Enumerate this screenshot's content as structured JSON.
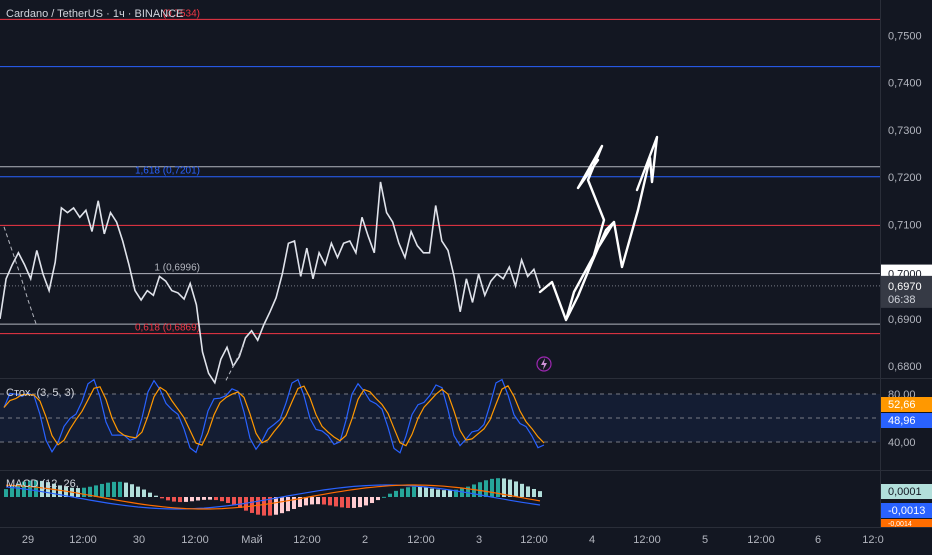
{
  "header": {
    "symbol": "Cardano / TetherUS",
    "interval": "1ч",
    "exchange": "BINANCE"
  },
  "chart_data": {
    "type": "line",
    "price_axis": {
      "ticks": [
        "0,7500",
        "0,7400",
        "0,7300",
        "0,7200",
        "0,7100",
        "0,7000",
        "0,6900",
        "0,6800"
      ],
      "ylim": [
        0.6775,
        0.7575
      ]
    },
    "time_axis": {
      "labels": [
        "29",
        "12:00",
        "30",
        "12:00",
        "Май",
        "12:00",
        "2",
        "12:00",
        "3",
        "12:00",
        "4",
        "12:00",
        "5",
        "12:00",
        "6",
        "12:0"
      ]
    },
    "last_price": {
      "value": "0,6970",
      "countdown": "06:38"
    },
    "levels": [
      {
        "label": "(0,7534)",
        "price": 0.7534,
        "color": "#f23645"
      },
      {
        "label": "",
        "price": 0.7434,
        "color": "#2962ff"
      },
      {
        "label": "",
        "price": 0.7222,
        "color": "#b2b5be"
      },
      {
        "label": "1,618 (0,7201)",
        "price": 0.7201,
        "color": "#2962ff"
      },
      {
        "label": "",
        "price": 0.7098,
        "color": "#f23645"
      },
      {
        "label": "1 (0,6996)",
        "price": 0.6996,
        "color": "#b2b5be"
      },
      {
        "label": "",
        "price": 0.6889,
        "color": "#b2b5be"
      },
      {
        "label": "0,618 (0,6869)",
        "price": 0.6869,
        "color": "#f23645"
      }
    ],
    "series": [
      {
        "color": "#e0e3eb",
        "values": [
          0.69,
          0.6985,
          0.7015,
          0.704,
          0.7015,
          0.6985,
          0.7045,
          0.6995,
          0.696,
          0.702,
          0.7135,
          0.7125,
          0.7135,
          0.7115,
          0.713,
          0.7085,
          0.715,
          0.708,
          0.7125,
          0.7105,
          0.7065,
          0.7015,
          0.696,
          0.694,
          0.696,
          0.695,
          0.699,
          0.698,
          0.696,
          0.6955,
          0.6942,
          0.6975,
          0.693,
          0.683,
          0.6785,
          0.6765,
          0.6815,
          0.684,
          0.68,
          0.682,
          0.686,
          0.6875,
          0.6855,
          0.6888,
          0.6915,
          0.6945,
          0.6995,
          0.706,
          0.7065,
          0.699,
          0.705,
          0.6985,
          0.704,
          0.7015,
          0.706,
          0.703,
          0.706,
          0.7065,
          0.704,
          0.7115,
          0.7075,
          0.704,
          0.719,
          0.7125,
          0.7105,
          0.706,
          0.703,
          0.7085,
          0.7055,
          0.704,
          0.704,
          0.714,
          0.7065,
          0.7045,
          0.699,
          0.6915,
          0.6985,
          0.6935,
          0.6995,
          0.695,
          0.698,
          0.6995,
          0.6985,
          0.701,
          0.697,
          0.7025,
          0.699,
          0.7005,
          0.6965
        ]
      },
      {
        "color": "#b2b5be",
        "values": [
          0.7095,
          0.7045,
          0.6995,
          0.694,
          0.689
        ]
      },
      {
        "color": "#b2b5be",
        "values": [
          0.677,
          0.6795,
          0.682,
          0.6845
        ]
      }
    ],
    "drawing": {
      "color": "#ffffff"
    }
  },
  "stoch": {
    "label": "Стох. (3, 5, 3)",
    "k_value": "52,66",
    "d_value": "48,96",
    "upper": "80,00",
    "lower": "40,00",
    "k_color": "#ff9800",
    "d_color": "#2962ff"
  },
  "macd": {
    "label": "MACD (12, 26,",
    "hist_value": "0,0001",
    "macd_value": "-0,0013",
    "signal_value": "-0,0014",
    "macd_color": "#2962ff",
    "signal_color": "#ff6d00",
    "hist_colors": {
      "up_strong": "#26a69a",
      "up_weak": "#b2dfdb",
      "down_strong": "#ef5350",
      "down_weak": "#ffcdd2"
    }
  },
  "alert_icon": "lightning-icon"
}
